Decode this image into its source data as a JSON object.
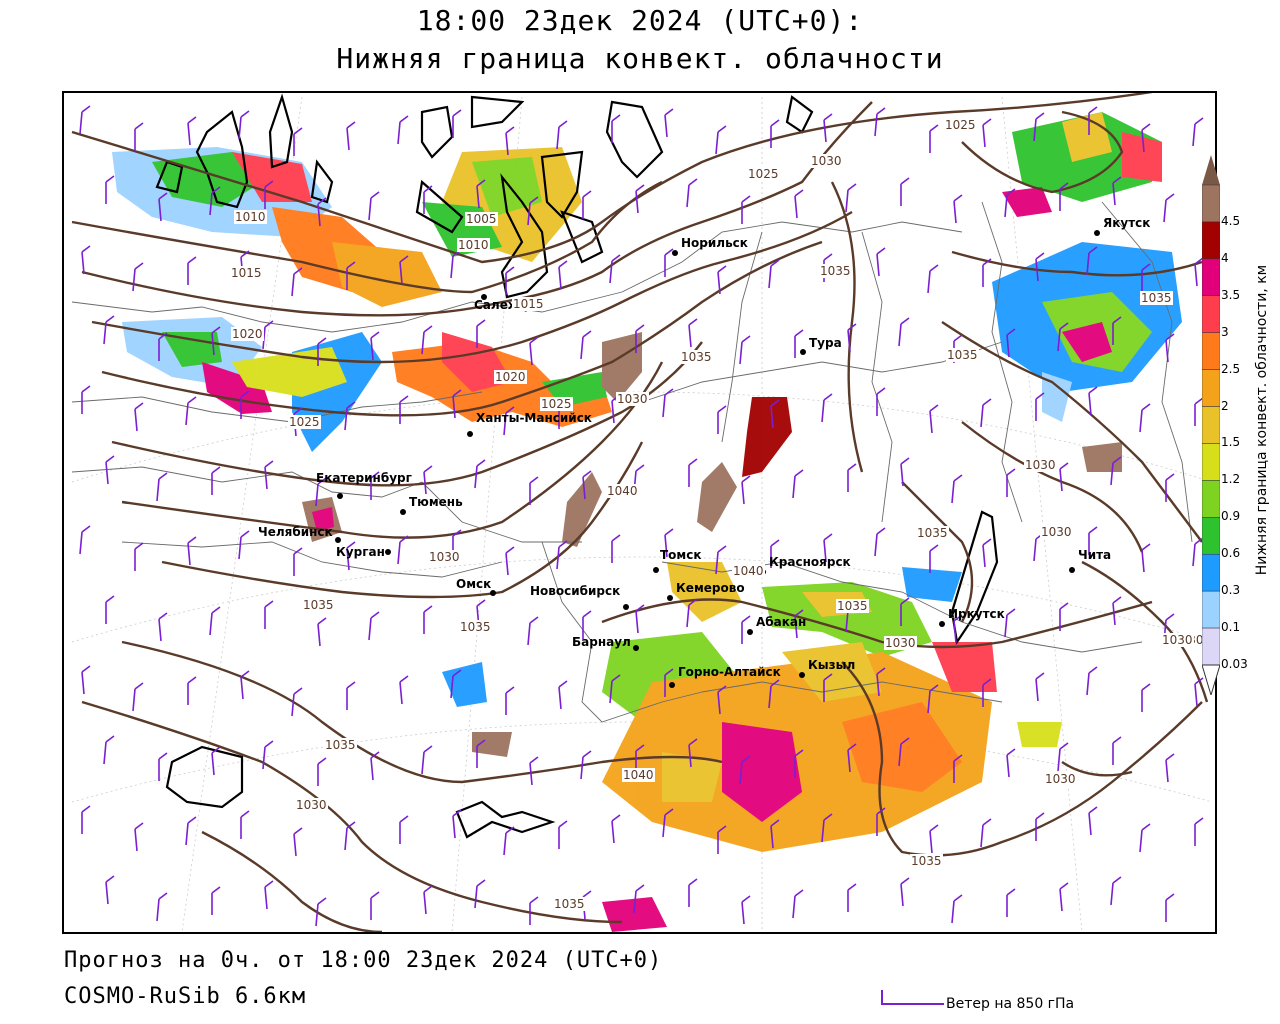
{
  "title": {
    "line1": "18:00 23дек 2024 (UTC+0):",
    "line2": "Нижняя граница конвект. облачности"
  },
  "footer": {
    "forecast": "Прогноз на 0ч. от 18:00 23дек 2024 (UTC+0)",
    "model": "COSMO-RuSib 6.6км",
    "wind_legend": "Ветер на 850 гПа"
  },
  "colorbar": {
    "title": "Нижняя граница конвект. облачности, км",
    "ticks": [
      "4.5",
      "4",
      "3.5",
      "3",
      "2.5",
      "2",
      "1.5",
      "1.2",
      "0.9",
      "0.6",
      "0.3",
      "0.1",
      "0.03"
    ],
    "colors": [
      "#9c7460",
      "#a30000",
      "#e1007a",
      "#ff3d4d",
      "#ff7a1a",
      "#f4a21a",
      "#e9c128",
      "#d7df1a",
      "#7ed321",
      "#2ec22e",
      "#1e9bff",
      "#9cd2ff",
      "#dcd6f7"
    ]
  },
  "cities": [
    {
      "name": "Якутск"
    },
    {
      "name": "Норильск"
    },
    {
      "name": "Салехард"
    },
    {
      "name": "Тура"
    },
    {
      "name": "Ханты-Мансийск"
    },
    {
      "name": "Екатеринбург"
    },
    {
      "name": "Тюмень"
    },
    {
      "name": "Челябинск"
    },
    {
      "name": "Курган"
    },
    {
      "name": "Омск"
    },
    {
      "name": "Новосибирск"
    },
    {
      "name": "Томск"
    },
    {
      "name": "Кемерово"
    },
    {
      "name": "Красноярск"
    },
    {
      "name": "Барнаул"
    },
    {
      "name": "Абакан"
    },
    {
      "name": "Иркутск"
    },
    {
      "name": "Чита"
    },
    {
      "name": "Горно-Алтайск"
    },
    {
      "name": "Кызыл"
    }
  ],
  "isobar_labels": [
    "1025",
    "1030",
    "1025",
    "1010",
    "1015",
    "1020",
    "1025",
    "1005",
    "1010",
    "1015",
    "1035",
    "1020",
    "1025",
    "1030",
    "1035",
    "1035",
    "1035",
    "1030",
    "1040",
    "1030",
    "1035",
    "1030",
    "1035",
    "1040",
    "1035",
    "1035",
    "1030",
    "1030",
    "1035",
    "1030",
    "1040",
    "1030",
    "1035",
    "1035",
    "1030"
  ],
  "colors": {
    "isobar": "#5a3a28",
    "coastline": "#000000",
    "border": "#555555",
    "wind_barb": "#7a1fd1"
  }
}
